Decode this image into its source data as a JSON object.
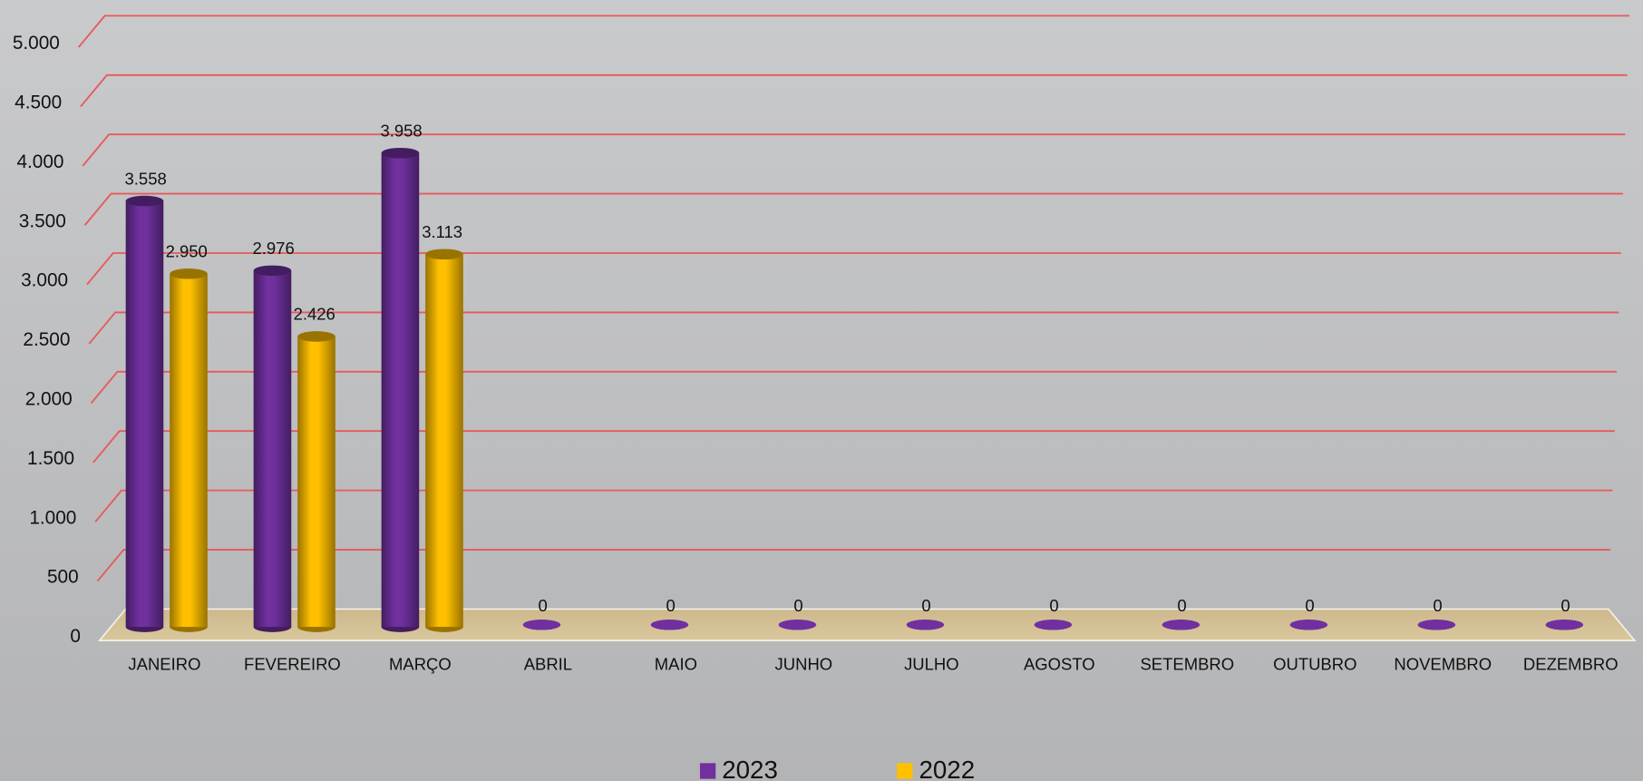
{
  "chart_data": {
    "type": "bar3d",
    "categories": [
      "JANEIRO",
      "FEVEREIRO",
      "MARÇO",
      "ABRIL",
      "MAIO",
      "JUNHO",
      "JULHO",
      "AGOSTO",
      "SETEMBRO",
      "OUTUBRO",
      "NOVEMBRO",
      "DEZEMBRO"
    ],
    "series": [
      {
        "name": "2023",
        "color": "#7030a0",
        "values": [
          3558,
          2976,
          3958,
          0,
          0,
          0,
          0,
          0,
          0,
          0,
          0,
          0
        ],
        "value_labels": [
          "3.558",
          "2.976",
          "3.958",
          "0",
          "0",
          "0",
          "0",
          "0",
          "0",
          "0",
          "0",
          "0"
        ]
      },
      {
        "name": "2022",
        "color": "#ffc000",
        "values": [
          2950,
          2426,
          3113,
          null,
          null,
          null,
          null,
          null,
          null,
          null,
          null,
          null
        ],
        "value_labels": [
          "2.950",
          "2.426",
          "3.113",
          null,
          null,
          null,
          null,
          null,
          null,
          null,
          null,
          null
        ]
      }
    ],
    "ylim": [
      0,
      5000
    ],
    "yticks": [
      0,
      500,
      {
        "value": 1000,
        "label": "1.000"
      },
      {
        "value": 1500,
        "label": "1.500"
      },
      {
        "value": 2000,
        "label": "2.000"
      },
      {
        "value": 2500,
        "label": "2.500"
      },
      {
        "value": 3000,
        "label": "3.000"
      },
      {
        "value": 3500,
        "label": "3.500"
      },
      {
        "value": 4000,
        "label": "4.000"
      },
      {
        "value": 4500,
        "label": "4.500"
      },
      {
        "value": 5000,
        "label": "5.000"
      }
    ],
    "grid": true,
    "grid_color": "#e8595b",
    "legend": "bottom"
  }
}
